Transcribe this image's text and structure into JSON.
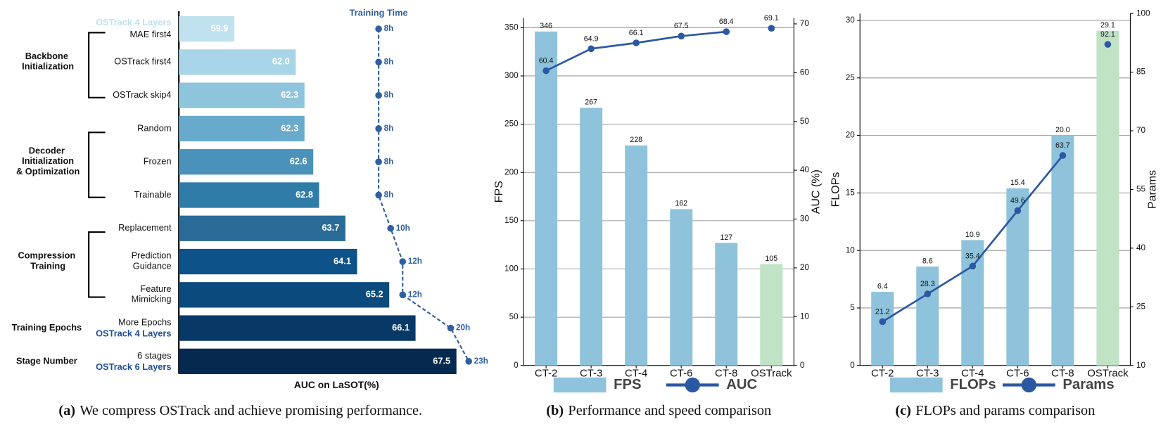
{
  "chart_data": [
    {
      "type": "hbar",
      "categories": [
        "MAE first4",
        "OSTrack first4",
        "OSTrack skip4",
        "Random",
        "Frozen",
        "Trainable",
        "Replacement",
        "Prediction\nGuidance",
        "Feature\nMimicking",
        "More Epochs",
        "6 stages"
      ],
      "category_notes": [
        "OSTrack 4 Layers",
        null,
        null,
        null,
        null,
        null,
        null,
        null,
        null,
        "OSTrack 4 Layers",
        "OSTrack 6 Layers"
      ],
      "groups": [
        {
          "label": "Backbone\nInitialization",
          "first": 0,
          "last": 2
        },
        {
          "label": "Decoder\nInitialization\n& Optimization",
          "first": 3,
          "last": 5
        },
        {
          "label": "Compression\nTraining",
          "first": 6,
          "last": 8
        },
        {
          "label": "Training Epochs",
          "first": 9,
          "last": 9
        },
        {
          "label": "Stage Number",
          "first": 10,
          "last": 10
        }
      ],
      "values": [
        59.9,
        62.0,
        62.3,
        62.3,
        62.6,
        62.8,
        63.7,
        64.1,
        65.2,
        66.1,
        67.5
      ],
      "value_labels": [
        "59.9",
        "62.0",
        "62.3",
        "62.3",
        "62.6",
        "62.8",
        "63.7",
        "64.1",
        "65.2",
        "66.1",
        "67.5"
      ],
      "colors": [
        "#bfe2ee",
        "#a8d5e7",
        "#8ec4dc",
        "#68aacb",
        "#4b92bb",
        "#2f7ca9",
        "#2a6b98",
        "#0d5289",
        "#0b4a7d",
        "#083866",
        "#062a4f"
      ],
      "xlim": [
        58,
        69
      ],
      "xlabel": "AUC on LaSOT(%)",
      "time": {
        "title": "Training Time",
        "values": [
          8,
          8,
          8,
          8,
          8,
          8,
          10,
          12,
          12,
          20,
          23
        ],
        "value_labels": [
          "8h",
          "8h",
          "8h",
          "8h",
          "8h",
          "8h",
          "10h",
          "12h",
          "12h",
          "20h",
          "23h"
        ],
        "color": "#2e5fa3",
        "xlim": [
          0,
          30
        ]
      },
      "caption": {
        "label": "(a)",
        "text": "We compress OSTrack and achieve promising performance."
      }
    },
    {
      "type": "bar_line",
      "categories": [
        "CT-2",
        "CT-3",
        "CT-4",
        "CT-6",
        "CT-8",
        "OSTrack"
      ],
      "series": [
        {
          "name": "FPS",
          "type": "bar",
          "values": [
            346,
            267,
            228,
            162,
            127,
            105
          ],
          "colors": [
            "#8fc3dc",
            "#8fc3dc",
            "#8fc3dc",
            "#8fc3dc",
            "#8fc3dc",
            "#bfe3c4"
          ]
        },
        {
          "name": "AUC",
          "type": "line",
          "axis": "y2",
          "values": [
            60.4,
            64.9,
            66.1,
            67.5,
            68.4,
            69.1
          ],
          "color": "#2b58a3",
          "connect_last": false
        }
      ],
      "ylabel": "FPS",
      "y2label": "AUC (%)",
      "ylim": [
        0,
        360
      ],
      "yticks": [
        0,
        50,
        100,
        150,
        200,
        250,
        300,
        350
      ],
      "y2lim": [
        0,
        71.2
      ],
      "y2ticks": [
        0,
        10,
        20,
        30,
        40,
        50,
        60,
        70
      ],
      "grid": true,
      "legend": "bottom",
      "caption": {
        "label": "(b)",
        "text": "Performance and speed comparison"
      }
    },
    {
      "type": "bar_line",
      "categories": [
        "CT-2",
        "CT-3",
        "CT-4",
        "CT-6",
        "CT-8",
        "OSTrack"
      ],
      "series": [
        {
          "name": "FLOPs",
          "type": "bar",
          "values": [
            6.4,
            8.6,
            10.9,
            15.4,
            20.0,
            29.1
          ],
          "value_labels": [
            "6.4",
            "8.6",
            "10.9",
            "15.4",
            "20.0",
            "29.1"
          ],
          "colors": [
            "#8fc3dc",
            "#8fc3dc",
            "#8fc3dc",
            "#8fc3dc",
            "#8fc3dc",
            "#bfe3c4"
          ]
        },
        {
          "name": "Params",
          "type": "line",
          "axis": "y2",
          "values": [
            21.2,
            28.3,
            35.4,
            49.6,
            63.7,
            92.1
          ],
          "color": "#2b58a3",
          "connect_last": false
        }
      ],
      "ylabel": "FLOPs",
      "y2label": "Params",
      "ylim": [
        0,
        30.6
      ],
      "yticks": [
        0,
        5,
        10,
        15,
        20,
        25,
        30
      ],
      "y2lim": [
        10,
        100
      ],
      "y2ticks": [
        10,
        25,
        40,
        55,
        70,
        85,
        100
      ],
      "grid": true,
      "legend": "bottom",
      "caption": {
        "label": "(c)",
        "text": "FLOPs and params comparison"
      }
    }
  ]
}
